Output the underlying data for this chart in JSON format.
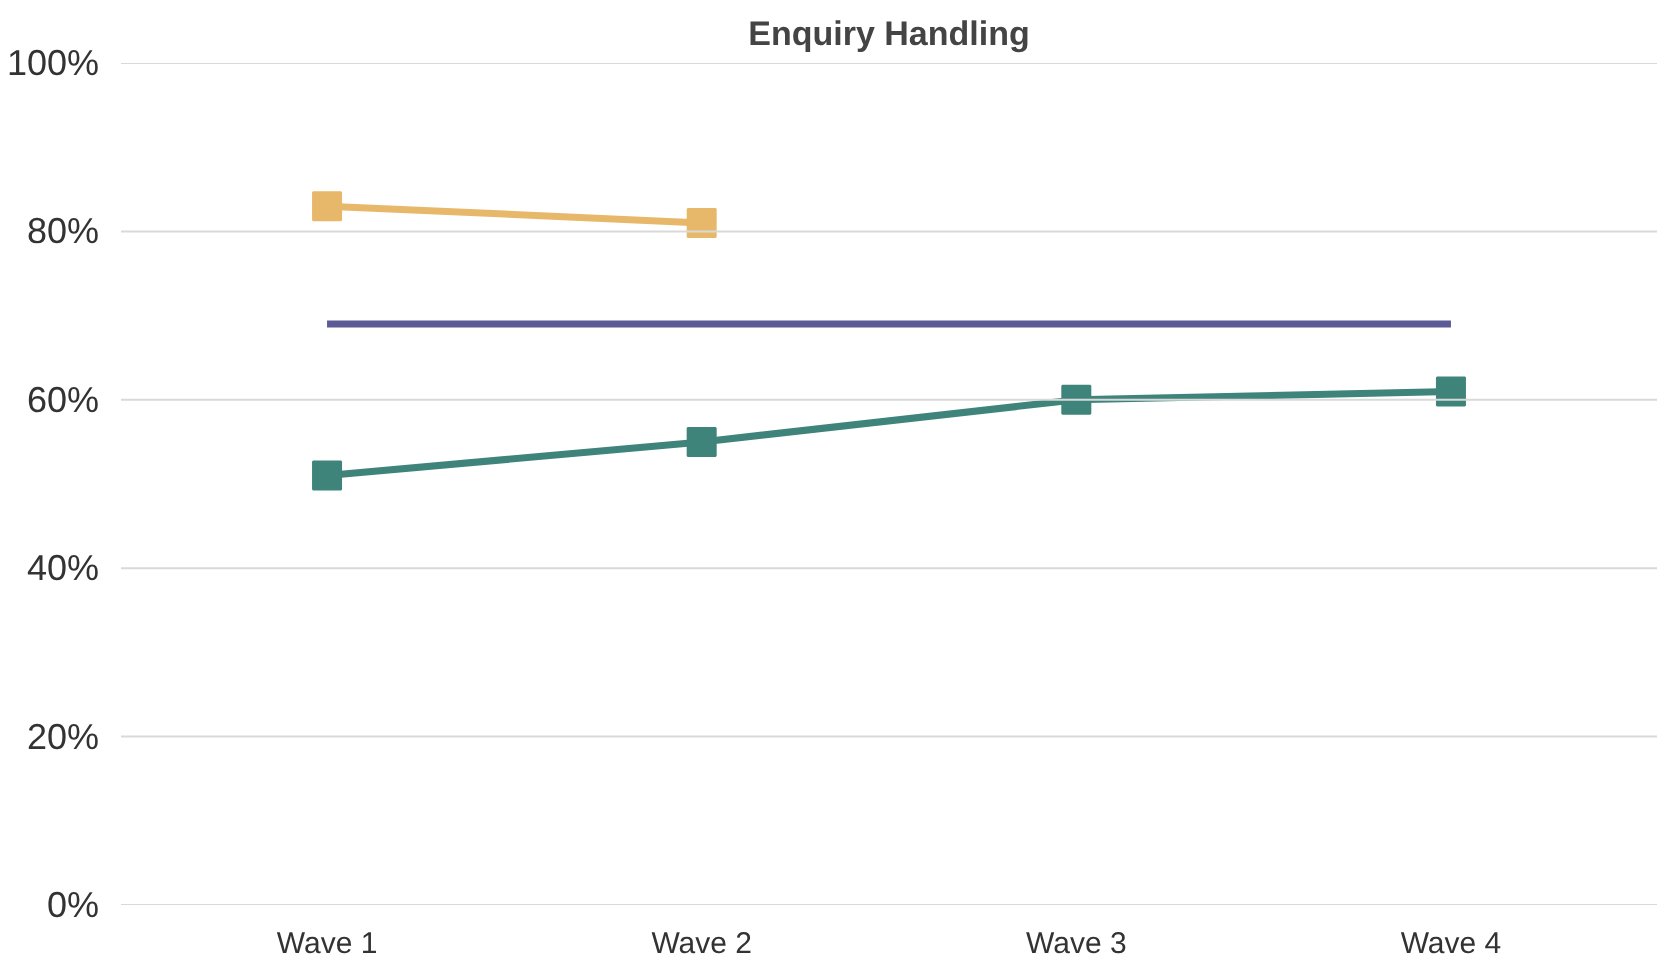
{
  "chart_data": {
    "type": "line",
    "title": "Enquiry Handling",
    "categories": [
      "Wave 1",
      "Wave 2",
      "Wave 3",
      "Wave 4"
    ],
    "series": [
      {
        "color": "#e8b86a",
        "values": [
          83,
          81,
          null,
          null
        ]
      },
      {
        "color": "#5c5b95",
        "values": [
          69,
          69,
          69,
          69
        ],
        "marker": "none"
      },
      {
        "color": "#3f847a",
        "values": [
          51,
          55,
          60,
          61
        ]
      }
    ],
    "ylim": [
      0,
      100
    ],
    "yticks": [
      {
        "value": 0,
        "label": "0%"
      },
      {
        "value": 20,
        "label": "20%"
      },
      {
        "value": 40,
        "label": "40%"
      },
      {
        "value": 60,
        "label": "60%"
      },
      {
        "value": 80,
        "label": "80%"
      },
      {
        "value": 100,
        "label": "100%"
      }
    ],
    "grid": "y",
    "marker": "square"
  }
}
